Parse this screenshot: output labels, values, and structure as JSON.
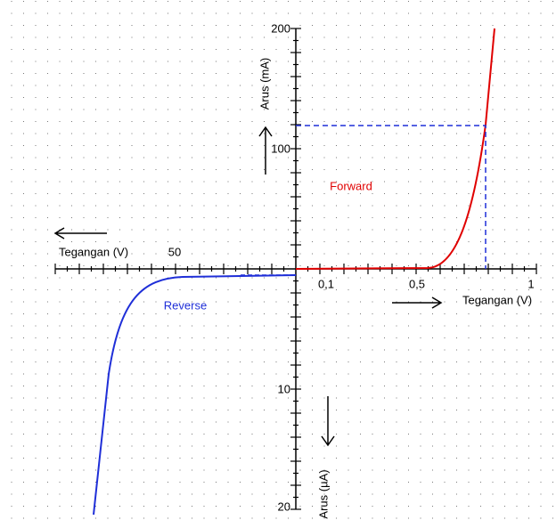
{
  "axes": {
    "y_top_label": "Arus (mA)",
    "y_bottom_label": "Arus (µA)",
    "x_left_label": "Tegangan (V)",
    "x_right_label": "Tegangan (V)",
    "y_top_ticks": [
      "200",
      "100"
    ],
    "y_bottom_ticks": [
      "10",
      "20"
    ],
    "x_right_ticks": [
      "0,1",
      "0,5",
      "1"
    ],
    "x_left_ticks": [
      "50"
    ]
  },
  "curves": {
    "forward": "Forward",
    "reverse": "Reverse"
  }
}
